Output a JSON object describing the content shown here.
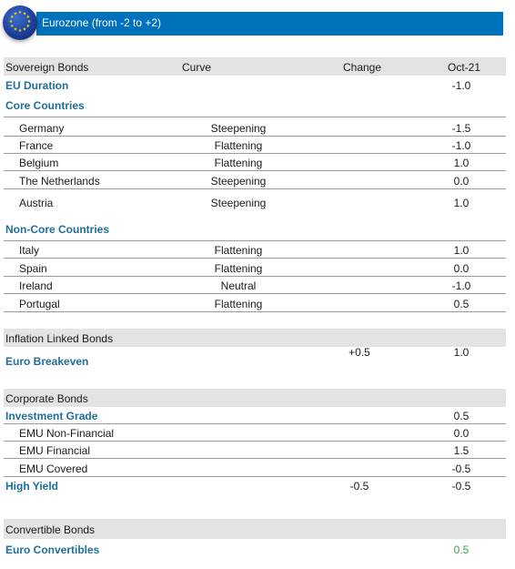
{
  "banner": {
    "title": "Eurozone (from -2 to +2)"
  },
  "columns": {
    "name": "Sovereign Bonds",
    "curve": "Curve",
    "change": "Change",
    "period": "Oct-21"
  },
  "eu_duration": {
    "name": "EU Duration",
    "value": "-1.0"
  },
  "core": {
    "title": "Core Countries",
    "rows": [
      {
        "name": "Germany",
        "curve": "Steepening",
        "value": "-1.5"
      },
      {
        "name": "France",
        "curve": "Flattening",
        "value": "-1.0"
      },
      {
        "name": "Belgium",
        "curve": "Flattening",
        "value": "1.0"
      },
      {
        "name": "The Netherlands",
        "curve": "Steepening",
        "value": "0.0"
      },
      {
        "name": "Austria",
        "curve": "Steepening",
        "value": "1.0"
      }
    ]
  },
  "noncore": {
    "title": "Non-Core Countries",
    "rows": [
      {
        "name": "Italy",
        "curve": "Flattening",
        "value": "1.0"
      },
      {
        "name": "Spain",
        "curve": "Flattening",
        "value": "0.0"
      },
      {
        "name": "Ireland",
        "curve": "Neutral",
        "value": "-1.0"
      },
      {
        "name": "Portugal",
        "curve": "Flattening",
        "value": "0.5"
      }
    ]
  },
  "inflation": {
    "title": "Inflation Linked Bonds",
    "row": {
      "name": "Euro Breakeven",
      "change": "+0.5",
      "value": "1.0"
    }
  },
  "corporate": {
    "title": "Corporate Bonds",
    "ig": {
      "name": "Investment Grade",
      "value": "0.5"
    },
    "rows": [
      {
        "name": "EMU Non-Financial",
        "value": "0.0"
      },
      {
        "name": "EMU Financial",
        "value": "1.5"
      },
      {
        "name": "EMU Covered",
        "value": "-0.5"
      }
    ],
    "hy": {
      "name": "High Yield",
      "change": "-0.5",
      "value": "-0.5"
    }
  },
  "convertible": {
    "title": "Convertible Bonds",
    "row": {
      "name": "Euro Convertibles",
      "value": "0.5"
    }
  },
  "colors": {
    "banner": "#0071bc",
    "label_blue": "#1f6e99",
    "positive_green": "#3aa14a",
    "header_gray": "#e3e3e3"
  },
  "icons": {
    "eu_flag": "eu-flag-icon"
  }
}
